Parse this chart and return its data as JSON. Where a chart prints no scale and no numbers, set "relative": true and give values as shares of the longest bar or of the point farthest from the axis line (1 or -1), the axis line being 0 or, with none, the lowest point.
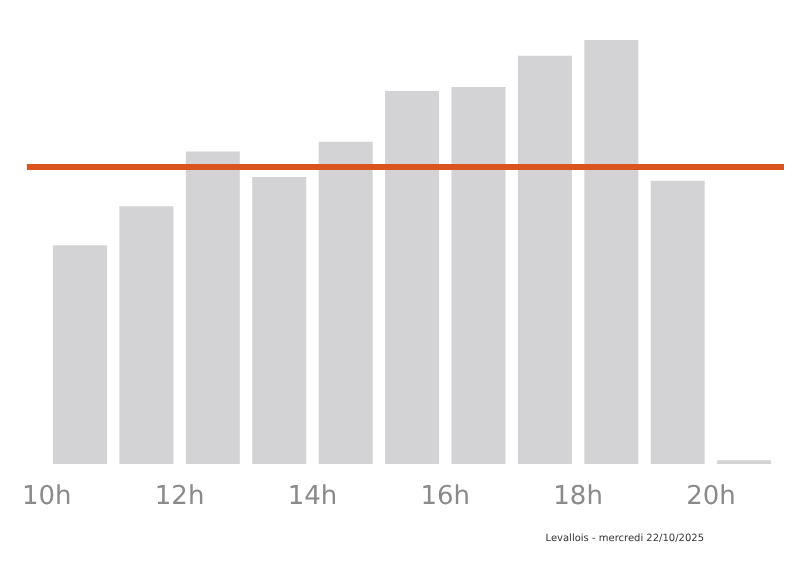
{
  "chart_data": {
    "type": "bar",
    "relative": true,
    "x": [
      10.5,
      11.5,
      12.5,
      13.5,
      14.5,
      15.5,
      16.5,
      17.5,
      18.5,
      19.5,
      20.5
    ],
    "values": [
      0.516,
      0.608,
      0.737,
      0.677,
      0.76,
      0.88,
      0.889,
      0.963,
      1,
      0.668,
      0.009
    ],
    "color": "#d3d3d5",
    "xlim": [
      9.7,
      21.1
    ],
    "xticks": [
      {
        "value": 10,
        "label": "10h"
      },
      {
        "value": 12,
        "label": "12h"
      },
      {
        "value": 14,
        "label": "14h"
      },
      {
        "value": 16,
        "label": "16h"
      },
      {
        "value": 18,
        "label": "18h"
      },
      {
        "value": 20,
        "label": "20h"
      }
    ],
    "ref_lines": [
      {
        "axis": "y",
        "value": 0.7,
        "color": "#d9541e"
      }
    ],
    "annotations": [
      "Levallois - mercredi 22/10/2025"
    ],
    "grid": false
  }
}
